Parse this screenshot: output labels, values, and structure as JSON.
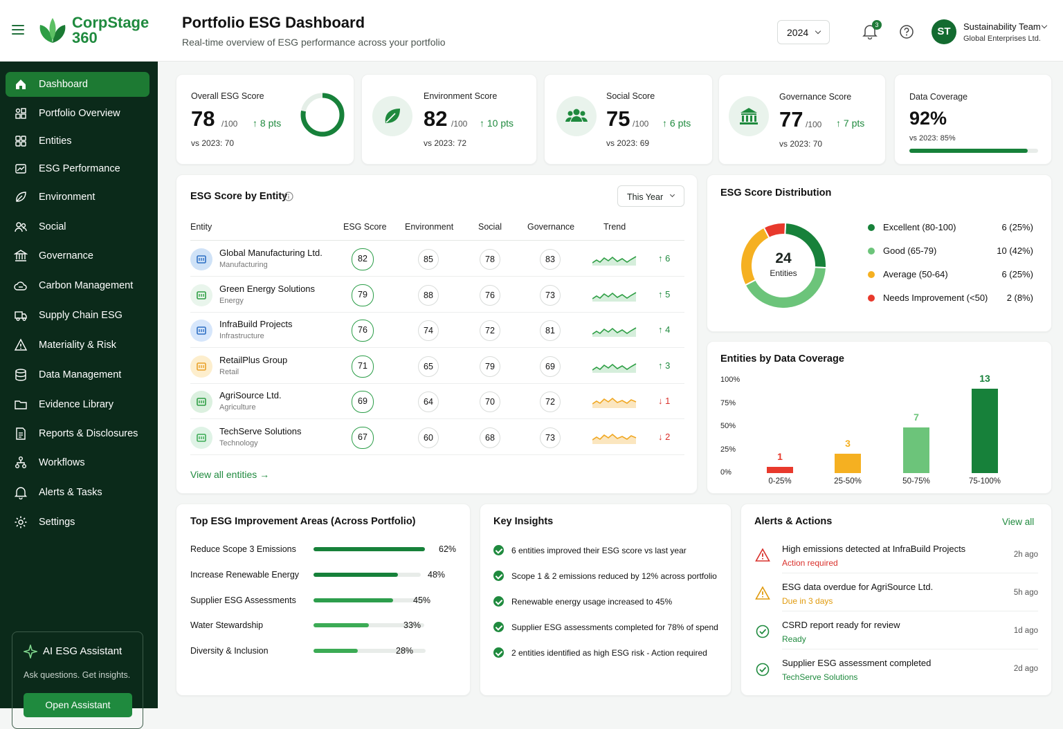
{
  "brand": {
    "line1": "CorpStage",
    "line2": "360"
  },
  "header": {
    "title": "Portfolio ESG Dashboard",
    "subtitle": "Real-time overview of ESG performance across your portfolio",
    "year": "2024",
    "notifications": "3",
    "user_initials": "ST",
    "user_name": "Sustainability Team",
    "user_org": "Global Enterprises Ltd."
  },
  "sidebar": {
    "items": [
      {
        "label": "Dashboard",
        "icon": "home-icon"
      },
      {
        "label": "Portfolio Overview",
        "icon": "portfolio-icon"
      },
      {
        "label": "Entities",
        "icon": "entities-icon"
      },
      {
        "label": "ESG Performance",
        "icon": "performance-icon"
      },
      {
        "label": "Environment",
        "icon": "leaf-icon"
      },
      {
        "label": "Social",
        "icon": "users-icon"
      },
      {
        "label": "Governance",
        "icon": "building-icon"
      },
      {
        "label": "Carbon Management",
        "icon": "cloud-icon"
      },
      {
        "label": "Supply Chain ESG",
        "icon": "truck-icon"
      },
      {
        "label": "Materiality & Risk",
        "icon": "warning-icon"
      },
      {
        "label": "Data Management",
        "icon": "database-icon"
      },
      {
        "label": "Evidence Library",
        "icon": "folder-icon"
      },
      {
        "label": "Reports & Disclosures",
        "icon": "report-icon"
      },
      {
        "label": "Workflows",
        "icon": "workflow-icon"
      },
      {
        "label": "Alerts & Tasks",
        "icon": "bell-icon"
      },
      {
        "label": "Settings",
        "icon": "gear-icon"
      }
    ],
    "assistant": {
      "title": "AI ESG Assistant",
      "subtitle": "Ask questions. Get insights.",
      "button": "Open Assistant"
    }
  },
  "kpis": [
    {
      "label": "Overall ESG Score",
      "value": "78",
      "of": "/100",
      "delta": "8 pts",
      "vs": "vs 2023: 70",
      "ring_fraction": 0.78
    },
    {
      "label": "Environment Score",
      "value": "82",
      "of": "/100",
      "delta": "10 pts",
      "vs": "vs 2023: 72"
    },
    {
      "label": "Social Score",
      "value": "75",
      "of": "/100",
      "delta": "6 pts",
      "vs": "vs 2023: 69"
    },
    {
      "label": "Governance Score",
      "value": "77",
      "of": "/100",
      "delta": "7 pts",
      "vs": "vs 2023: 70"
    },
    {
      "label": "Data Coverage",
      "value": "92%",
      "vs": "vs 2023: 85%",
      "bar_fraction": 0.92
    }
  ],
  "entity_table": {
    "title": "ESG Score by Entity",
    "filter": "This Year",
    "columns": [
      "Entity",
      "ESG Score",
      "Environment",
      "Social",
      "Governance",
      "Trend"
    ],
    "rows": [
      {
        "name": "Global Manufacturing Ltd.",
        "sector": "Manufacturing",
        "esg": "82",
        "env": "85",
        "soc": "78",
        "gov": "83",
        "delta": "6",
        "dir": "up"
      },
      {
        "name": "Green Energy Solutions",
        "sector": "Energy",
        "esg": "79",
        "env": "88",
        "soc": "76",
        "gov": "73",
        "delta": "5",
        "dir": "up"
      },
      {
        "name": "InfraBuild Projects",
        "sector": "Infrastructure",
        "esg": "76",
        "env": "74",
        "soc": "72",
        "gov": "81",
        "delta": "4",
        "dir": "up"
      },
      {
        "name": "RetailPlus Group",
        "sector": "Retail",
        "esg": "71",
        "env": "65",
        "soc": "79",
        "gov": "69",
        "delta": "3",
        "dir": "up"
      },
      {
        "name": "AgriSource Ltd.",
        "sector": "Agriculture",
        "esg": "69",
        "env": "64",
        "soc": "70",
        "gov": "72",
        "delta": "1",
        "dir": "down"
      },
      {
        "name": "TechServe Solutions",
        "sector": "Technology",
        "esg": "67",
        "env": "60",
        "soc": "68",
        "gov": "73",
        "delta": "2",
        "dir": "down"
      }
    ],
    "view_all": "View all entities"
  },
  "distribution": {
    "title": "ESG Score Distribution",
    "center_value": "24",
    "center_label": "Entities",
    "legend": [
      {
        "label": "Excellent (80-100)",
        "value": "6 (25%)",
        "color": "#17813a",
        "count": 6
      },
      {
        "label": "Good (65-79)",
        "value": "10 (42%)",
        "color": "#6cc47a",
        "count": 10
      },
      {
        "label": "Average (50-64)",
        "value": "6 (25%)",
        "color": "#f5b021",
        "count": 6
      },
      {
        "label": "Needs Improvement (<50)",
        "value": "2 (8%)",
        "color": "#e8392c",
        "count": 2
      }
    ]
  },
  "chart_data": {
    "type": "bar",
    "title": "Entities by Data Coverage",
    "categories": [
      "0-25%",
      "25-50%",
      "50-75%",
      "75-100%"
    ],
    "values": [
      1,
      3,
      7,
      13
    ],
    "value_labels": [
      "1",
      "3",
      "7",
      "13"
    ],
    "colors": [
      "#e8392c",
      "#f5b021",
      "#6cc47a",
      "#17813a"
    ],
    "y_ticks": [
      "100%",
      "75%",
      "50%",
      "25%",
      "0%"
    ],
    "ylim": [
      0,
      13
    ],
    "grid": false
  },
  "improvement": {
    "title": "Top ESG Improvement Areas (Across Portfolio)",
    "items": [
      {
        "label": "Reduce Scope 3 Emissions",
        "pct": "62%",
        "fraction": 0.62,
        "color": "#17813a"
      },
      {
        "label": "Increase Renewable Energy",
        "pct": "48%",
        "fraction": 0.48,
        "color": "#17813a"
      },
      {
        "label": "Supplier ESG Assessments",
        "pct": "45%",
        "fraction": 0.45,
        "color": "#2d9e4c"
      },
      {
        "label": "Water Stewardship",
        "pct": "33%",
        "fraction": 0.33,
        "color": "#3cab55"
      },
      {
        "label": "Diversity & Inclusion",
        "pct": "28%",
        "fraction": 0.28,
        "color": "#3cab55"
      }
    ]
  },
  "insights": {
    "title": "Key Insights",
    "items": [
      "6 entities improved their ESG score vs last year",
      "Scope 1 & 2 emissions reduced by 12% across portfolio",
      "Renewable energy usage increased to 45%",
      "Supplier ESG assessments completed for 78% of spend",
      "2 entities identified as high ESG risk - Action required"
    ]
  },
  "alerts": {
    "title": "Alerts & Actions",
    "view_all": "View all",
    "items": [
      {
        "title": "High emissions detected at InfraBuild Projects",
        "status": "Action required",
        "time": "2h ago",
        "icon": "warning-red-icon",
        "color": "#d9302b"
      },
      {
        "title": "ESG data overdue for AgriSource Ltd.",
        "status": "Due in 3 days",
        "time": "5h ago",
        "icon": "warning-amber-icon",
        "color": "#e09a0c"
      },
      {
        "title": "CSRD report ready for review",
        "status": "Ready",
        "time": "1d ago",
        "icon": "check-circle-icon",
        "color": "#1f8a3e"
      },
      {
        "title": "Supplier ESG assessment completed",
        "status": "TechServe Solutions",
        "time": "2d ago",
        "icon": "check-circle-icon",
        "color": "#1f8a3e"
      }
    ]
  }
}
